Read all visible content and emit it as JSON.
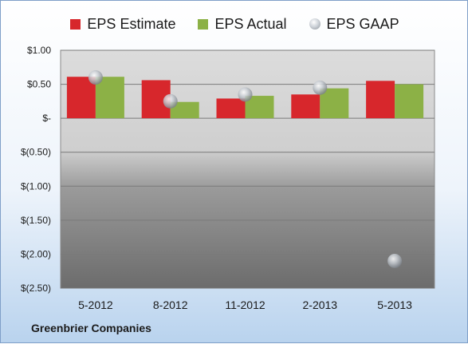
{
  "company": "Greenbrier Companies",
  "chart_data": {
    "type": "bar",
    "categories": [
      "5-2012",
      "8-2012",
      "11-2012",
      "2-2013",
      "5-2013"
    ],
    "series": [
      {
        "name": "EPS Estimate",
        "kind": "bar",
        "color": "#d7272c",
        "values": [
          0.61,
          0.56,
          0.29,
          0.35,
          0.55
        ]
      },
      {
        "name": "EPS Actual",
        "kind": "bar",
        "color": "#8cb146",
        "values": [
          0.61,
          0.24,
          0.33,
          0.44,
          0.5
        ]
      },
      {
        "name": "EPS GAAP",
        "kind": "marker",
        "color": "#b8bec5",
        "values": [
          0.6,
          0.25,
          0.35,
          0.45,
          -2.1
        ]
      }
    ],
    "yticks": [
      {
        "value": 1.0,
        "label": "$1.00"
      },
      {
        "value": 0.5,
        "label": "$0.50"
      },
      {
        "value": 0.0,
        "label": "$-"
      },
      {
        "value": -0.5,
        "label": "$(0.50)"
      },
      {
        "value": -1.0,
        "label": "$(1.00)"
      },
      {
        "value": -1.5,
        "label": "$(1.50)"
      },
      {
        "value": -2.0,
        "label": "$(2.00)"
      },
      {
        "value": -2.5,
        "label": "$(2.50)"
      }
    ],
    "ylim": [
      -2.5,
      1.0
    ],
    "grid": true,
    "legend": "top"
  }
}
